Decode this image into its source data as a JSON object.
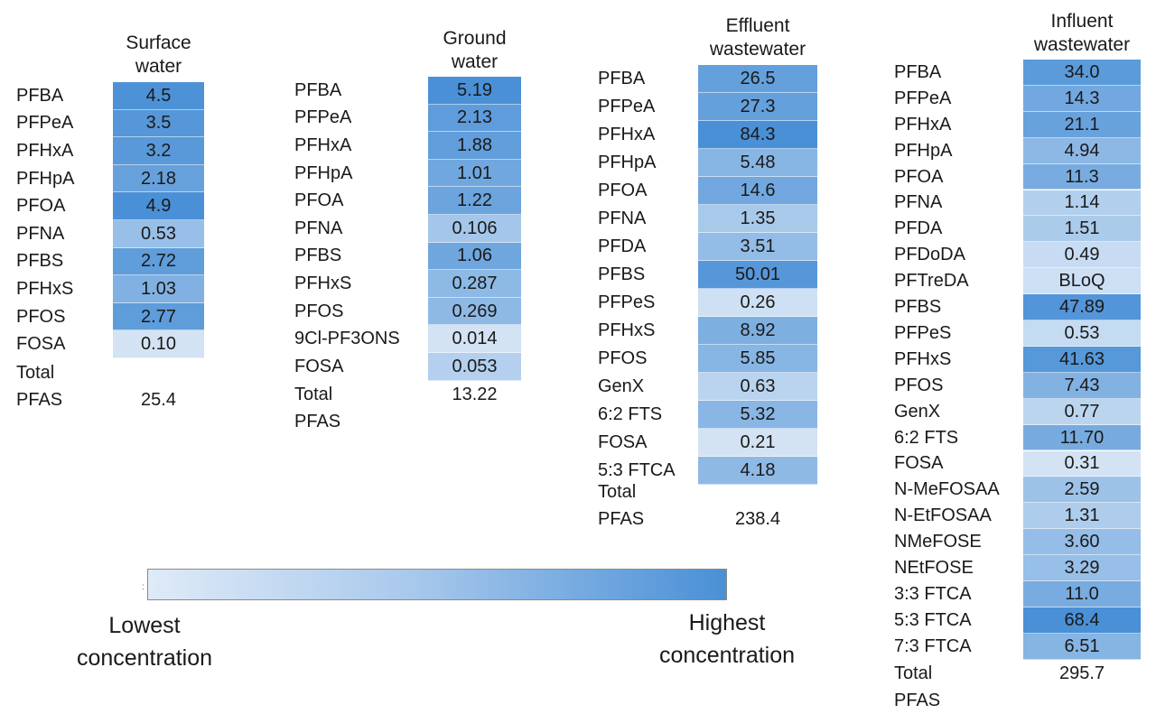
{
  "legend": {
    "low": [
      "Lowest",
      "concentration"
    ],
    "high": [
      "Highest",
      "concentration"
    ],
    "color_low": "#dfeaf7",
    "color_high": "#4a90d6"
  },
  "chart_data": [
    {
      "type": "heatmap",
      "title_lines": [
        "Surface",
        "water"
      ],
      "categories": [
        "PFBA",
        "PFPeA",
        "PFHxA",
        "PFHpA",
        "PFOA",
        "PFNA",
        "PFBS",
        "PFHxS",
        "PFOS",
        "FOSA"
      ],
      "values": [
        "4.5",
        "3.5",
        "3.2",
        "2.18",
        "4.9",
        "0.53",
        "2.72",
        "1.03",
        "2.77",
        "0.10"
      ],
      "total_label_lines": [
        "Total",
        "PFAS"
      ],
      "total_value": "25.4"
    },
    {
      "type": "heatmap",
      "title_lines": [
        "Ground",
        "water"
      ],
      "categories": [
        "PFBA",
        "PFPeA",
        "PFHxA",
        "PFHpA",
        "PFOA",
        "PFNA",
        "PFBS",
        "PFHxS",
        "PFOS",
        "9Cl-PF3ONS",
        "FOSA"
      ],
      "values": [
        "5.19",
        "2.13",
        "1.88",
        "1.01",
        "1.22",
        "0.106",
        "1.06",
        "0.287",
        "0.269",
        "0.014",
        "0.053"
      ],
      "total_label_lines": [
        "Total PFAS"
      ],
      "total_value": "13.22"
    },
    {
      "type": "heatmap",
      "title_lines": [
        "Effluent",
        "wastewater"
      ],
      "categories": [
        "PFBA",
        "PFPeA",
        "PFHxA",
        "PFHpA",
        "PFOA",
        "PFNA",
        "PFDA",
        "PFBS",
        "PFPeS",
        "PFHxS",
        "PFOS",
        "GenX",
        "6:2 FTS",
        "FOSA",
        "5:3 FTCA"
      ],
      "values": [
        "26.5",
        "27.3",
        "84.3",
        "5.48",
        "14.6",
        "1.35",
        "3.51",
        "50.01",
        "0.26",
        "8.92",
        "5.85",
        "0.63",
        "5.32",
        "0.21",
        "4.18"
      ],
      "total_label_lines": [
        "Total",
        "PFAS"
      ],
      "total_value": "238.4"
    },
    {
      "type": "heatmap",
      "title_lines": [
        "Influent",
        "wastewater"
      ],
      "categories": [
        "PFBA",
        "PFPeA",
        "PFHxA",
        "PFHpA",
        "PFOA",
        "PFNA",
        "PFDA",
        "PFDoDA",
        "PFTreDA",
        "PFBS",
        "PFPeS",
        "PFHxS",
        "PFOS",
        "GenX",
        "6:2 FTS",
        "FOSA",
        "N-MeFOSAA",
        "N-EtFOSAA",
        "NMeFOSE",
        "NEtFOSE",
        "3:3 FTCA",
        "5:3 FTCA",
        "7:3 FTCA"
      ],
      "values": [
        "34.0",
        "14.3",
        "21.1",
        "4.94",
        "11.3",
        "1.14",
        "1.51",
        "0.49",
        "BLoQ",
        "47.89",
        "0.53",
        "41.63",
        "7.43",
        "0.77",
        "11.70",
        "0.31",
        "2.59",
        "1.31",
        "3.60",
        "3.29",
        "11.0",
        "68.4",
        "6.51"
      ],
      "total_label_lines": [
        "Total PFAS"
      ],
      "total_value": "295.7"
    }
  ]
}
